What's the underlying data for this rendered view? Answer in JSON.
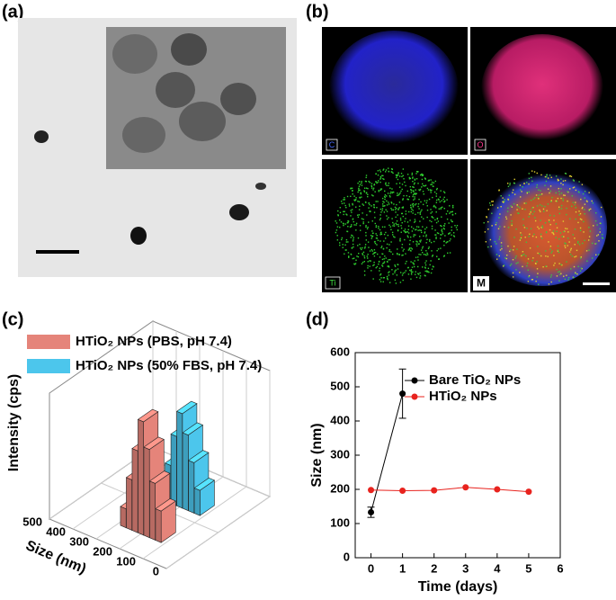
{
  "panel_labels": {
    "a": "(a)",
    "b": "(b)",
    "c": "(c)",
    "d": "(d)"
  },
  "panel_b": {
    "maps": [
      "C",
      "O",
      "Ti",
      "M"
    ]
  },
  "chart_data": [
    {
      "type": "bar3d",
      "y_label": "Intensity (cps)",
      "x_label": "Size (nm)",
      "xlim": [
        0,
        500
      ],
      "xticks": [
        0,
        100,
        200,
        300,
        400,
        500
      ],
      "zlim": [
        0,
        20
      ],
      "series": [
        {
          "name": "HTiO₂ NPs (PBS, pH 7.4)",
          "color": "#e5847a",
          "x": [
            125,
            150,
            175,
            200,
            225,
            250,
            275
          ],
          "values": [
            5,
            9,
            14,
            18,
            13,
            8,
            3
          ]
        },
        {
          "name": "HTiO₂ NPs (50% FBS, pH 7.4)",
          "color": "#4cc6ec",
          "x": [
            125,
            150,
            175,
            200,
            225,
            250,
            275
          ],
          "values": [
            4,
            8,
            12,
            15,
            11,
            6,
            2
          ]
        }
      ]
    },
    {
      "type": "line",
      "x_label": "Time (days)",
      "y_label": "Size (nm)",
      "xlim": [
        -0.5,
        6
      ],
      "xticks": [
        0,
        1,
        2,
        3,
        4,
        5,
        6
      ],
      "ylim": [
        0,
        600
      ],
      "yticks": [
        0,
        100,
        200,
        300,
        400,
        500,
        600
      ],
      "legend": "upper right",
      "series": [
        {
          "name": "Bare TiO₂ NPs",
          "color": "#000000",
          "x": [
            0,
            1
          ],
          "values": [
            133,
            480
          ],
          "errors": [
            15,
            72
          ]
        },
        {
          "name": "HTiO₂ NPs",
          "color": "#e8231e",
          "x": [
            0,
            1,
            2,
            3,
            4,
            5
          ],
          "values": [
            198,
            196,
            197,
            206,
            200,
            193
          ]
        }
      ]
    }
  ]
}
